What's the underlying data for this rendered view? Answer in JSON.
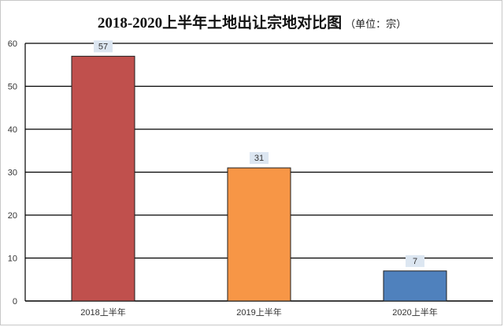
{
  "chart_data": {
    "type": "bar",
    "title": "2018-2020上半年土地出让宗地对比图",
    "unit": "（单位：宗）",
    "categories": [
      "2018上半年",
      "2019上半年",
      "2020上半年"
    ],
    "values": [
      57,
      31,
      7
    ],
    "colors": [
      "#c0504d",
      "#f79646",
      "#4f81bd"
    ],
    "ylim": [
      0,
      60
    ],
    "yticks": [
      0,
      10,
      20,
      30,
      40,
      50,
      60
    ],
    "grid": true,
    "legend": "none",
    "xlabel": "",
    "ylabel": ""
  }
}
